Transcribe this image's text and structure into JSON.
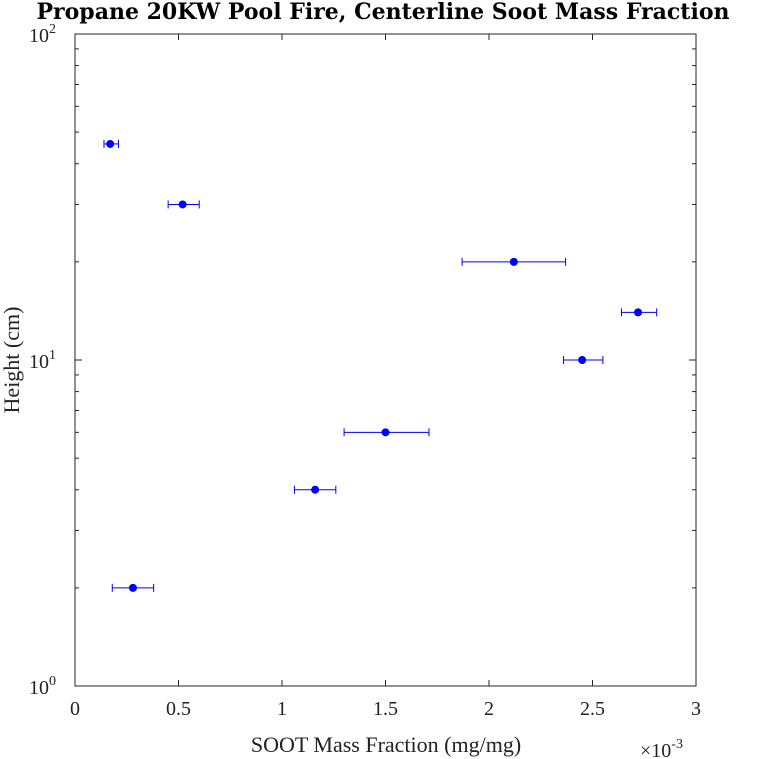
{
  "chart_data": {
    "type": "scatter",
    "title": "Propane 20KW Pool Fire, Centerline Soot Mass Fraction",
    "xlabel": "SOOT Mass Fraction (mg/mg)",
    "ylabel": "Height (cm)",
    "x_multiplier_label": "×10",
    "x_multiplier_exponent": "-3",
    "x_scale": 0.001,
    "xlim": [
      0,
      3
    ],
    "ylim": [
      1,
      100
    ],
    "y_scale": "log",
    "x_ticks": [
      "0",
      "0.5",
      "1",
      "1.5",
      "2",
      "2.5",
      "3"
    ],
    "y_ticks": [
      {
        "base": "10",
        "exp": "0",
        "value": 1
      },
      {
        "base": "10",
        "exp": "1",
        "value": 10
      },
      {
        "base": "10",
        "exp": "2",
        "value": 100
      }
    ],
    "marker_color": "#0000ff",
    "grid": false,
    "points": [
      {
        "x": 0.28,
        "y": 2,
        "xerr": [
          0.18,
          0.38
        ]
      },
      {
        "x": 1.16,
        "y": 4,
        "xerr": [
          1.06,
          1.26
        ]
      },
      {
        "x": 1.5,
        "y": 6,
        "xerr": [
          1.3,
          1.71
        ]
      },
      {
        "x": 2.45,
        "y": 10,
        "xerr": [
          2.36,
          2.55
        ]
      },
      {
        "x": 2.72,
        "y": 14,
        "xerr": [
          2.64,
          2.81
        ]
      },
      {
        "x": 2.12,
        "y": 20,
        "xerr": [
          1.87,
          2.37
        ]
      },
      {
        "x": 0.52,
        "y": 30,
        "xerr": [
          0.45,
          0.6
        ]
      },
      {
        "x": 0.17,
        "y": 46,
        "xerr": [
          0.14,
          0.21
        ]
      }
    ]
  }
}
